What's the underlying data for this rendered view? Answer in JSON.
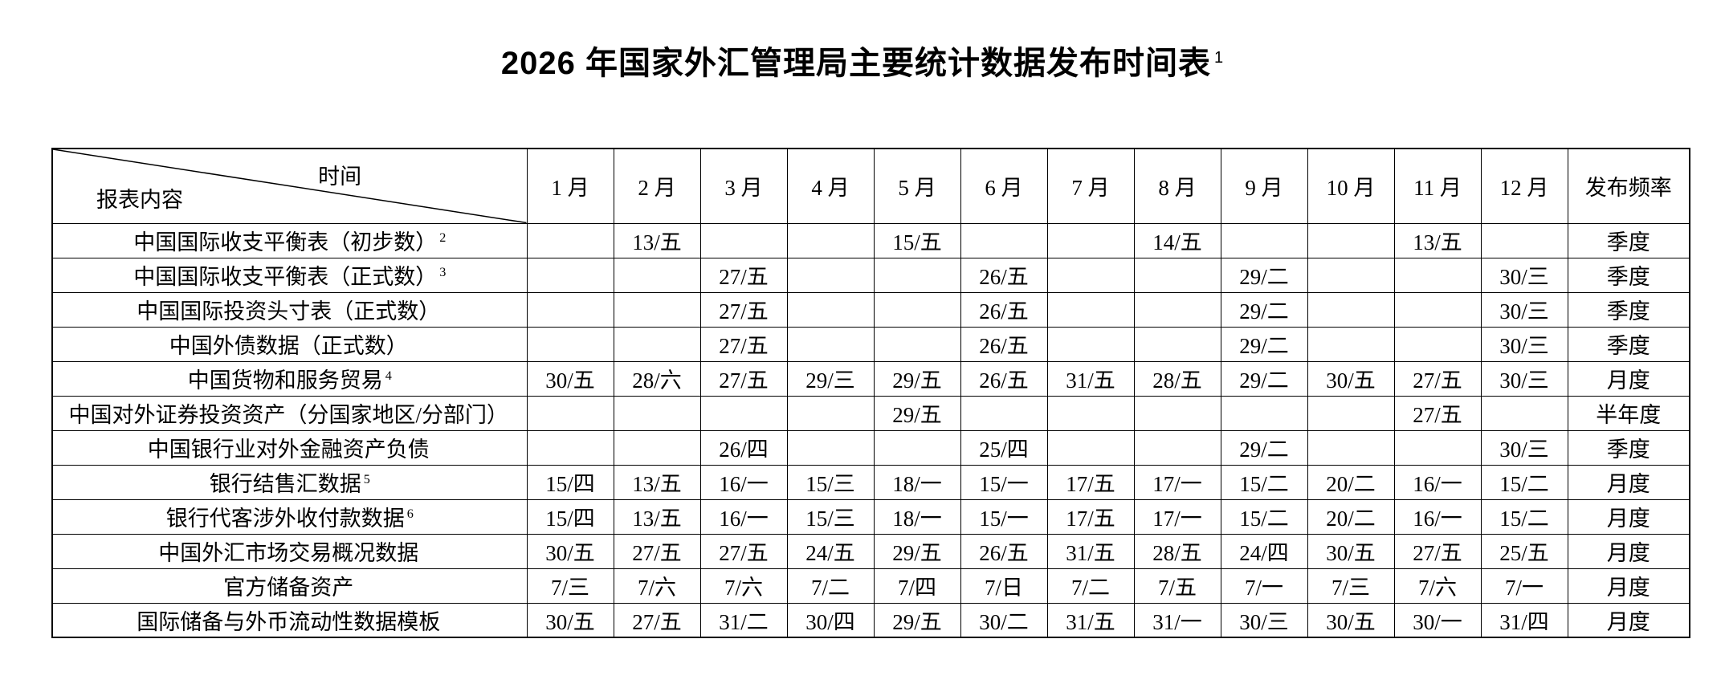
{
  "title": {
    "text": "2026 年国家外汇管理局主要统计数据发布时间表",
    "superscript": "1"
  },
  "colors": {
    "background": "#ffffff",
    "text": "#000000",
    "border": "#000000"
  },
  "table": {
    "corner": {
      "top_right_label": "时间",
      "bottom_left_label": "报表内容"
    },
    "month_headers": [
      "1 月",
      "2 月",
      "3 月",
      "4 月",
      "5 月",
      "6 月",
      "7 月",
      "8 月",
      "9 月",
      "10 月",
      "11 月",
      "12 月"
    ],
    "frequency_header": "发布频率",
    "rows": [
      {
        "name": "中国国际收支平衡表（初步数）",
        "sup": "2",
        "cells": [
          "",
          "13/五",
          "",
          "",
          "15/五",
          "",
          "",
          "14/五",
          "",
          "",
          "13/五",
          ""
        ],
        "frequency": "季度"
      },
      {
        "name": "中国国际收支平衡表（正式数）",
        "sup": "3",
        "cells": [
          "",
          "",
          "27/五",
          "",
          "",
          "26/五",
          "",
          "",
          "29/二",
          "",
          "",
          "30/三"
        ],
        "frequency": "季度"
      },
      {
        "name": "中国国际投资头寸表（正式数）",
        "cells": [
          "",
          "",
          "27/五",
          "",
          "",
          "26/五",
          "",
          "",
          "29/二",
          "",
          "",
          "30/三"
        ],
        "frequency": "季度"
      },
      {
        "name": "中国外债数据（正式数）",
        "cells": [
          "",
          "",
          "27/五",
          "",
          "",
          "26/五",
          "",
          "",
          "29/二",
          "",
          "",
          "30/三"
        ],
        "frequency": "季度"
      },
      {
        "name": "中国货物和服务贸易",
        "sup": "4",
        "cells": [
          "30/五",
          "28/六",
          "27/五",
          "29/三",
          "29/五",
          "26/五",
          "31/五",
          "28/五",
          "29/二",
          "30/五",
          "27/五",
          "30/三"
        ],
        "frequency": "月度"
      },
      {
        "name": "中国对外证券投资资产（分国家地区/分部门）",
        "cells": [
          "",
          "",
          "",
          "",
          "29/五",
          "",
          "",
          "",
          "",
          "",
          "27/五",
          ""
        ],
        "frequency": "半年度"
      },
      {
        "name": "中国银行业对外金融资产负债",
        "cells": [
          "",
          "",
          "26/四",
          "",
          "",
          "25/四",
          "",
          "",
          "29/二",
          "",
          "",
          "30/三"
        ],
        "frequency": "季度"
      },
      {
        "name": "银行结售汇数据",
        "sup": "5",
        "cells": [
          "15/四",
          "13/五",
          "16/一",
          "15/三",
          "18/一",
          "15/一",
          "17/五",
          "17/一",
          "15/二",
          "20/二",
          "16/一",
          "15/二"
        ],
        "frequency": "月度"
      },
      {
        "name": "银行代客涉外收付款数据",
        "sup": "6",
        "cells": [
          "15/四",
          "13/五",
          "16/一",
          "15/三",
          "18/一",
          "15/一",
          "17/五",
          "17/一",
          "15/二",
          "20/二",
          "16/一",
          "15/二"
        ],
        "frequency": "月度"
      },
      {
        "name": "中国外汇市场交易概况数据",
        "cells": [
          "30/五",
          "27/五",
          "27/五",
          "24/五",
          "29/五",
          "26/五",
          "31/五",
          "28/五",
          "24/四",
          "30/五",
          "27/五",
          "25/五"
        ],
        "frequency": "月度"
      },
      {
        "name": "官方储备资产",
        "cells": [
          "7/三",
          "7/六",
          "7/六",
          "7/二",
          "7/四",
          "7/日",
          "7/二",
          "7/五",
          "7/一",
          "7/三",
          "7/六",
          "7/一"
        ],
        "frequency": "月度"
      },
      {
        "name": "国际储备与外币流动性数据模板",
        "cells": [
          "30/五",
          "27/五",
          "31/二",
          "30/四",
          "29/五",
          "30/二",
          "31/五",
          "31/一",
          "30/三",
          "30/五",
          "30/一",
          "31/四"
        ],
        "frequency": "月度"
      }
    ]
  }
}
